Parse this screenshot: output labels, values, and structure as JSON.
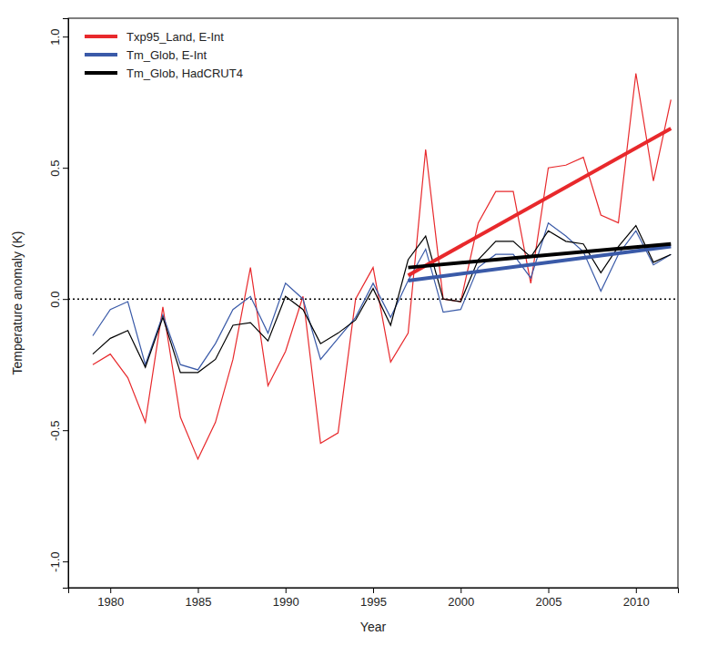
{
  "chart_data": {
    "type": "line",
    "x_label": "Year",
    "y_label": "Temperature anomaly (K)",
    "x": [
      1979,
      1980,
      1981,
      1982,
      1983,
      1984,
      1985,
      1986,
      1987,
      1988,
      1989,
      1990,
      1991,
      1992,
      1993,
      1994,
      1995,
      1996,
      1997,
      1998,
      1999,
      2000,
      2001,
      2002,
      2003,
      2004,
      2005,
      2006,
      2007,
      2008,
      2009,
      2010,
      2011,
      2012
    ],
    "series": [
      {
        "name": "Txp95_Land, E-Int",
        "color": "#e8292c",
        "values": [
          -0.25,
          -0.21,
          -0.3,
          -0.47,
          -0.03,
          -0.45,
          -0.61,
          -0.47,
          -0.23,
          0.12,
          -0.33,
          -0.2,
          0.01,
          -0.55,
          -0.51,
          0.0,
          0.12,
          -0.24,
          -0.13,
          0.57,
          0.0,
          -0.01,
          0.29,
          0.41,
          0.41,
          0.06,
          0.5,
          0.51,
          0.54,
          0.32,
          0.29,
          0.86,
          0.45,
          0.76
        ],
        "trend": {
          "x": [
            1997,
            2012
          ],
          "values": [
            0.09,
            0.65
          ]
        }
      },
      {
        "name": "Tm_Glob, E-Int",
        "color": "#3a5aa8",
        "values": [
          -0.14,
          -0.04,
          -0.01,
          -0.25,
          -0.06,
          -0.25,
          -0.27,
          -0.17,
          -0.04,
          0.01,
          -0.13,
          0.06,
          0.0,
          -0.23,
          -0.15,
          -0.07,
          0.06,
          -0.07,
          0.07,
          0.19,
          -0.05,
          -0.04,
          0.12,
          0.17,
          0.17,
          0.08,
          0.29,
          0.24,
          0.18,
          0.03,
          0.17,
          0.26,
          0.13,
          0.17
        ],
        "trend": {
          "x": [
            1997,
            2012
          ],
          "values": [
            0.07,
            0.2
          ]
        }
      },
      {
        "name": "Tm_Glob, HadCRUT4",
        "color": "#000000",
        "values": [
          -0.21,
          -0.15,
          -0.12,
          -0.26,
          -0.07,
          -0.28,
          -0.28,
          -0.23,
          -0.1,
          -0.09,
          -0.16,
          0.01,
          -0.04,
          -0.17,
          -0.13,
          -0.08,
          0.04,
          -0.1,
          0.15,
          0.24,
          0.0,
          -0.01,
          0.15,
          0.22,
          0.22,
          0.16,
          0.26,
          0.22,
          0.21,
          0.1,
          0.2,
          0.28,
          0.14,
          0.17
        ],
        "trend": {
          "x": [
            1997,
            2012
          ],
          "values": [
            0.12,
            0.21
          ]
        }
      }
    ],
    "hlines": [
      0
    ],
    "xlim": [
      1977.6,
      2012.4
    ],
    "xticks": [
      1980,
      1985,
      1990,
      1995,
      2000,
      2005,
      2010
    ],
    "ylim": [
      -1.1,
      1.07
    ],
    "yticks": [
      {
        "value": -1,
        "label": "-1.0"
      },
      {
        "value": -0.5,
        "label": "-0.5"
      },
      {
        "value": 0,
        "label": "0.0"
      },
      {
        "value": 0.5,
        "label": "0.5"
      },
      {
        "value": 1,
        "label": "1.0"
      }
    ],
    "legend": "top-left",
    "grid": false
  }
}
